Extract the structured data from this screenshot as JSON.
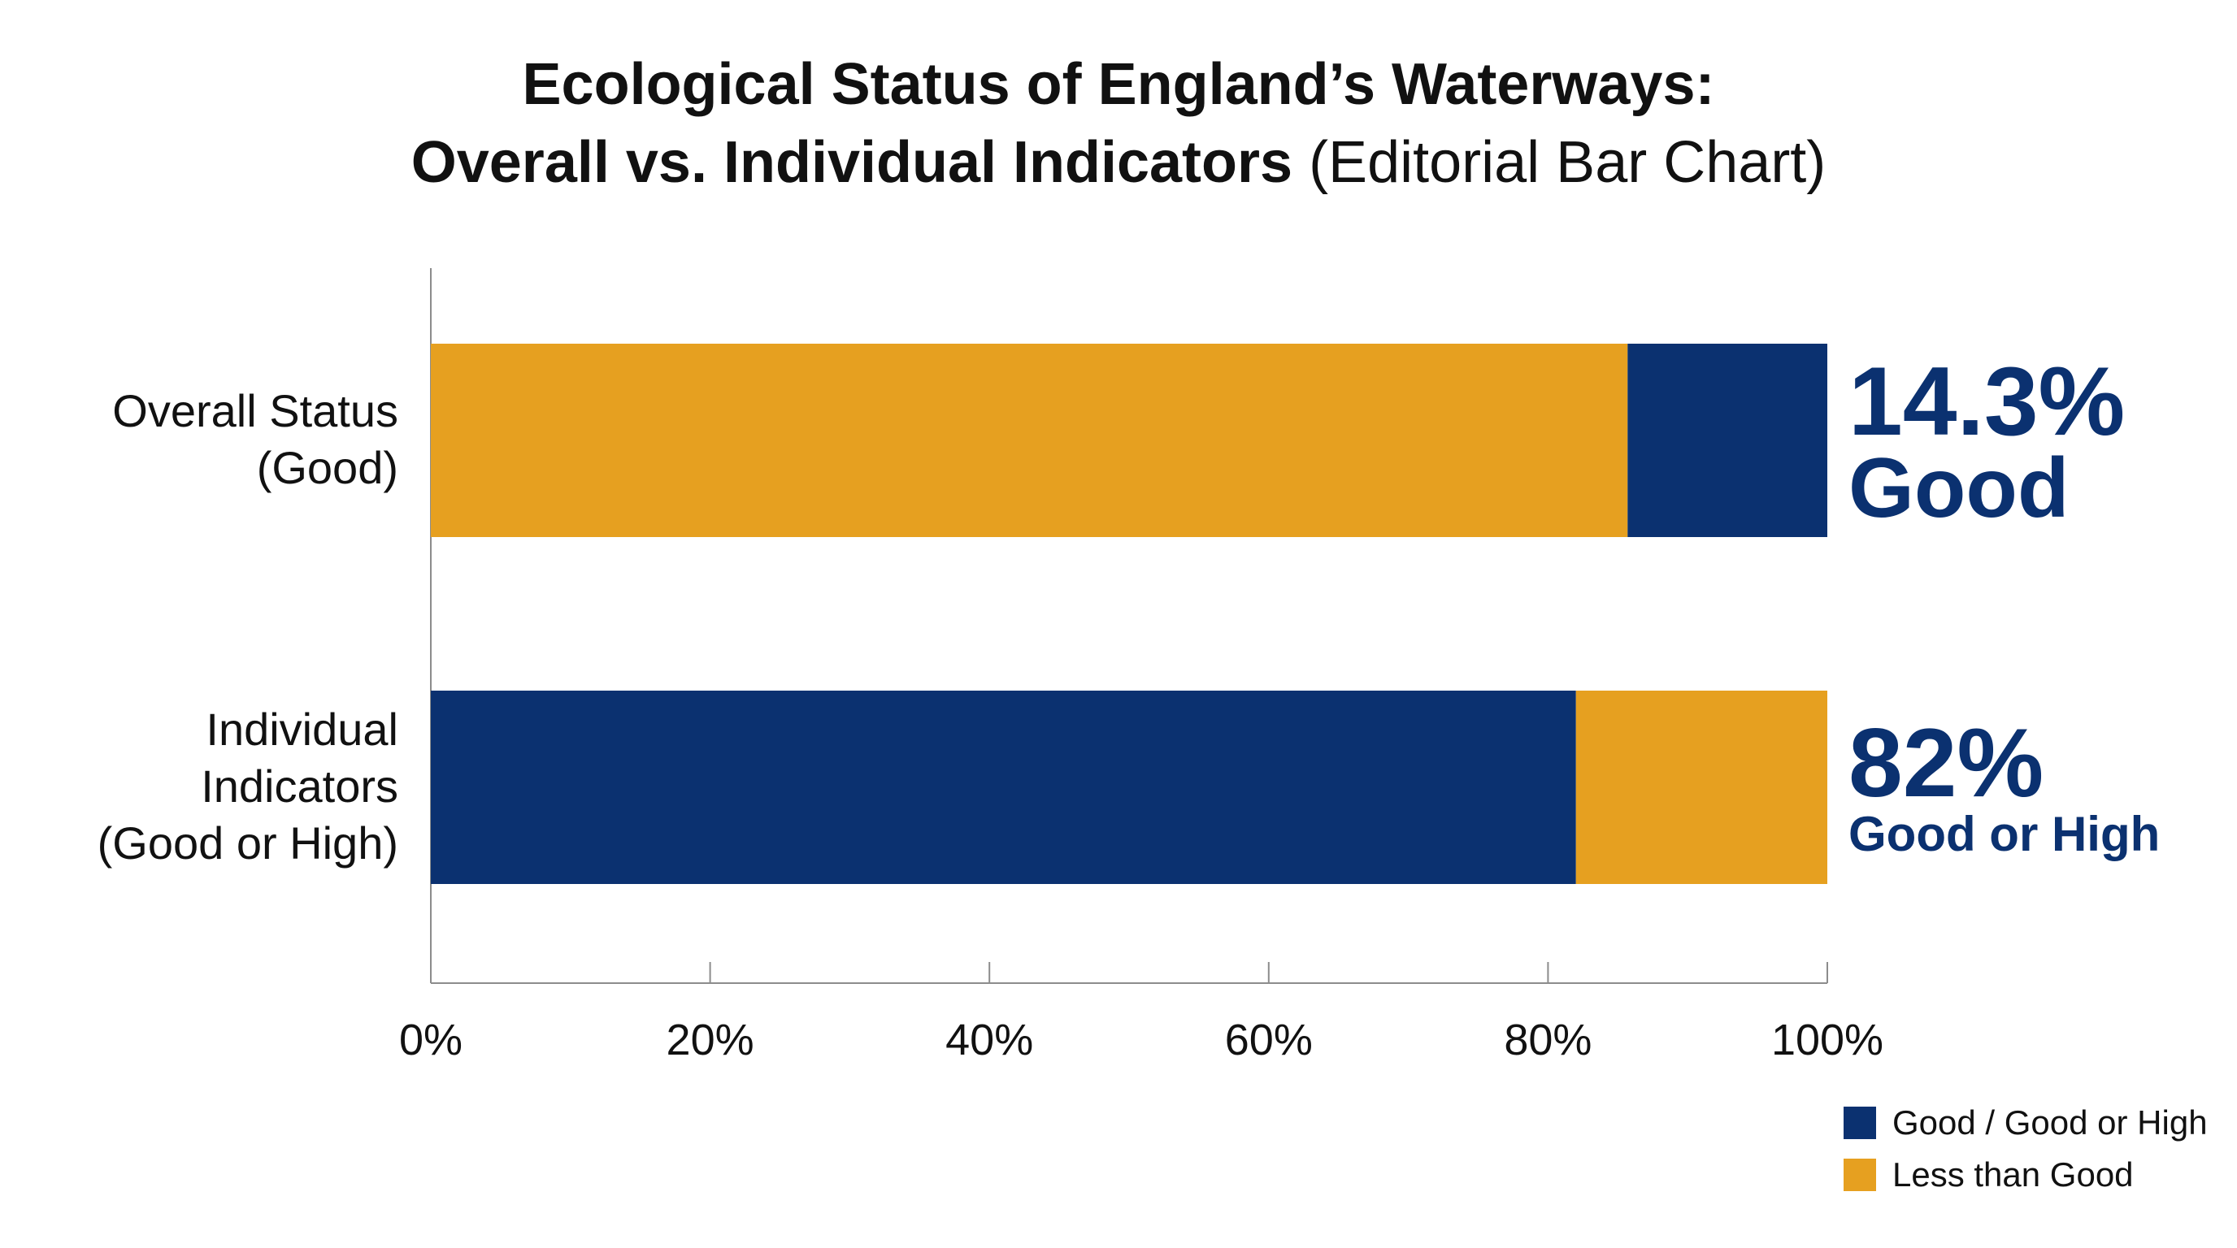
{
  "chart_data": {
    "type": "bar",
    "orientation": "horizontal",
    "stacked": true,
    "title": {
      "line1": "Ecological Status of England’s Waterways:",
      "line2_bold": "Overall vs. Individual Indicators",
      "line2_normal": " (Editorial Bar Chart)"
    },
    "categories": [
      {
        "lines": [
          "Overall Status",
          "(Good)"
        ]
      },
      {
        "lines": [
          "Individual",
          "Indicators",
          "(Good or High)"
        ]
      }
    ],
    "series": [
      {
        "name": "Good / Good or High",
        "color": "#0b3170",
        "values": [
          14.3,
          82
        ]
      },
      {
        "name": "Less than Good",
        "color": "#e6a020",
        "values": [
          85.7,
          18
        ]
      }
    ],
    "segment_order": [
      [
        "Less than Good",
        "Good / Good or High"
      ],
      [
        "Good / Good or High",
        "Less than Good"
      ]
    ],
    "xlim": [
      0,
      100
    ],
    "x_ticks": [
      {
        "value": 0,
        "label": "0%"
      },
      {
        "value": 20,
        "label": "20%"
      },
      {
        "value": 40,
        "label": "40%"
      },
      {
        "value": 60,
        "label": "60%"
      },
      {
        "value": 80,
        "label": "80%"
      },
      {
        "value": 100,
        "label": "100%"
      }
    ],
    "annotations": [
      {
        "value_text": "14.3%",
        "label": "Good",
        "style": "large",
        "color": "#0b3170"
      },
      {
        "value_text": "82%",
        "label": "Good or High",
        "style": "small",
        "color": "#0b3170"
      }
    ],
    "grid": false,
    "legend": {
      "placement": "bottom-right",
      "entries": [
        {
          "label": "Good / Good or High",
          "color": "#0b3170"
        },
        {
          "label": "Less than Good",
          "color": "#e6a020"
        }
      ]
    }
  }
}
